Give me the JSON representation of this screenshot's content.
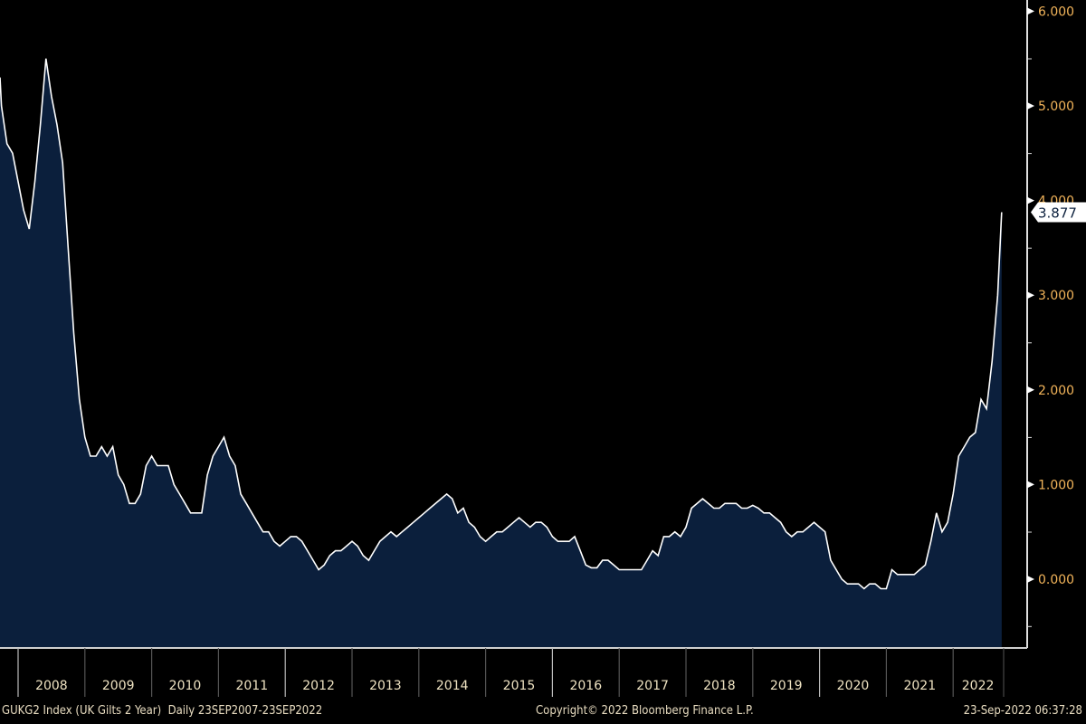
{
  "chart_data": {
    "type": "area",
    "title": "",
    "xlabel": "",
    "ylabel": "",
    "ylim": [
      -0.7,
      6.1
    ],
    "grid": false,
    "legend": "none",
    "colors": {
      "line": "#ffffff",
      "fill": "#0b1f3c",
      "tick_label": "#f2b45a",
      "year_label": "#efe3c2",
      "background": "#000000"
    },
    "y_ticks": [
      "6.000",
      "5.000",
      "4.000",
      "3.000",
      "2.000",
      "1.000",
      "0.000"
    ],
    "y_tick_values": [
      6,
      5,
      4,
      3,
      2,
      1,
      0
    ],
    "x_ticks": [
      "2008",
      "2009",
      "2010",
      "2011",
      "2012",
      "2013",
      "2014",
      "2015",
      "2016",
      "2017",
      "2018",
      "2019",
      "2020",
      "2021",
      "2022"
    ],
    "last_value": 3.877,
    "last_value_label": "3.877",
    "x": [
      "2007-09",
      "2007-10",
      "2007-11",
      "2007-12",
      "2008-01",
      "2008-02",
      "2008-03",
      "2008-04",
      "2008-05",
      "2008-06",
      "2008-07",
      "2008-08",
      "2008-09",
      "2008-10",
      "2008-11",
      "2008-12",
      "2009-01",
      "2009-02",
      "2009-03",
      "2009-04",
      "2009-05",
      "2009-06",
      "2009-07",
      "2009-08",
      "2009-09",
      "2009-10",
      "2009-11",
      "2009-12",
      "2010-01",
      "2010-02",
      "2010-03",
      "2010-04",
      "2010-05",
      "2010-06",
      "2010-07",
      "2010-08",
      "2010-09",
      "2010-10",
      "2010-11",
      "2010-12",
      "2011-01",
      "2011-02",
      "2011-03",
      "2011-04",
      "2011-05",
      "2011-06",
      "2011-07",
      "2011-08",
      "2011-09",
      "2011-10",
      "2011-11",
      "2011-12",
      "2012-01",
      "2012-02",
      "2012-03",
      "2012-04",
      "2012-05",
      "2012-06",
      "2012-07",
      "2012-08",
      "2012-09",
      "2012-10",
      "2012-11",
      "2012-12",
      "2013-01",
      "2013-02",
      "2013-03",
      "2013-04",
      "2013-05",
      "2013-06",
      "2013-07",
      "2013-08",
      "2013-09",
      "2013-10",
      "2013-11",
      "2013-12",
      "2014-01",
      "2014-02",
      "2014-03",
      "2014-04",
      "2014-05",
      "2014-06",
      "2014-07",
      "2014-08",
      "2014-09",
      "2014-10",
      "2014-11",
      "2014-12",
      "2015-01",
      "2015-02",
      "2015-03",
      "2015-04",
      "2015-05",
      "2015-06",
      "2015-07",
      "2015-08",
      "2015-09",
      "2015-10",
      "2015-11",
      "2015-12",
      "2016-01",
      "2016-02",
      "2016-03",
      "2016-04",
      "2016-05",
      "2016-06",
      "2016-07",
      "2016-08",
      "2016-09",
      "2016-10",
      "2016-11",
      "2016-12",
      "2017-01",
      "2017-02",
      "2017-03",
      "2017-04",
      "2017-05",
      "2017-06",
      "2017-07",
      "2017-08",
      "2017-09",
      "2017-10",
      "2017-11",
      "2017-12",
      "2018-01",
      "2018-02",
      "2018-03",
      "2018-04",
      "2018-05",
      "2018-06",
      "2018-07",
      "2018-08",
      "2018-09",
      "2018-10",
      "2018-11",
      "2018-12",
      "2019-01",
      "2019-02",
      "2019-03",
      "2019-04",
      "2019-05",
      "2019-06",
      "2019-07",
      "2019-08",
      "2019-09",
      "2019-10",
      "2019-11",
      "2019-12",
      "2020-01",
      "2020-02",
      "2020-03",
      "2020-04",
      "2020-05",
      "2020-06",
      "2020-07",
      "2020-08",
      "2020-09",
      "2020-10",
      "2020-11",
      "2020-12",
      "2021-01",
      "2021-02",
      "2021-03",
      "2021-04",
      "2021-05",
      "2021-06",
      "2021-07",
      "2021-08",
      "2021-09",
      "2021-10",
      "2021-11",
      "2021-12",
      "2022-01",
      "2022-02",
      "2022-03",
      "2022-04",
      "2022-05",
      "2022-06",
      "2022-07",
      "2022-08",
      "2022-09-01",
      "2022-09-23"
    ],
    "values": [
      5.3,
      5.0,
      4.6,
      4.5,
      4.2,
      3.9,
      3.7,
      4.2,
      4.8,
      5.5,
      5.1,
      4.8,
      4.4,
      3.5,
      2.6,
      1.9,
      1.5,
      1.3,
      1.3,
      1.4,
      1.3,
      1.4,
      1.1,
      1.0,
      0.8,
      0.8,
      0.9,
      1.2,
      1.3,
      1.2,
      1.2,
      1.2,
      1.0,
      0.9,
      0.8,
      0.7,
      0.7,
      0.7,
      1.1,
      1.3,
      1.4,
      1.5,
      1.3,
      1.2,
      0.9,
      0.8,
      0.7,
      0.6,
      0.5,
      0.5,
      0.4,
      0.35,
      0.4,
      0.45,
      0.45,
      0.4,
      0.3,
      0.2,
      0.1,
      0.15,
      0.25,
      0.3,
      0.3,
      0.35,
      0.4,
      0.35,
      0.25,
      0.2,
      0.3,
      0.4,
      0.45,
      0.5,
      0.45,
      0.5,
      0.55,
      0.6,
      0.65,
      0.7,
      0.75,
      0.8,
      0.85,
      0.9,
      0.85,
      0.7,
      0.75,
      0.6,
      0.55,
      0.45,
      0.4,
      0.45,
      0.5,
      0.5,
      0.55,
      0.6,
      0.65,
      0.6,
      0.55,
      0.6,
      0.6,
      0.55,
      0.45,
      0.4,
      0.4,
      0.4,
      0.45,
      0.3,
      0.15,
      0.12,
      0.12,
      0.2,
      0.2,
      0.15,
      0.1,
      0.1,
      0.1,
      0.1,
      0.1,
      0.2,
      0.3,
      0.25,
      0.45,
      0.45,
      0.5,
      0.45,
      0.55,
      0.75,
      0.8,
      0.85,
      0.8,
      0.75,
      0.75,
      0.8,
      0.8,
      0.8,
      0.75,
      0.75,
      0.78,
      0.75,
      0.7,
      0.7,
      0.65,
      0.6,
      0.5,
      0.45,
      0.5,
      0.5,
      0.55,
      0.6,
      0.55,
      0.5,
      0.2,
      0.1,
      0.0,
      -0.05,
      -0.05,
      -0.05,
      -0.1,
      -0.05,
      -0.05,
      -0.1,
      -0.1,
      0.1,
      0.05,
      0.05,
      0.05,
      0.05,
      0.1,
      0.15,
      0.4,
      0.7,
      0.5,
      0.6,
      0.9,
      1.3,
      1.4,
      1.5,
      1.55,
      1.9,
      1.8,
      2.3,
      3.0,
      3.877
    ]
  },
  "footer": {
    "ticker": "GUKG2 Index (UK Gilts 2 Year)  Daily 23SEP2007-23SEP2022",
    "copyright": "Copyright© 2022 Bloomberg Finance L.P.",
    "timestamp": "23-Sep-2022 06:37:28"
  }
}
